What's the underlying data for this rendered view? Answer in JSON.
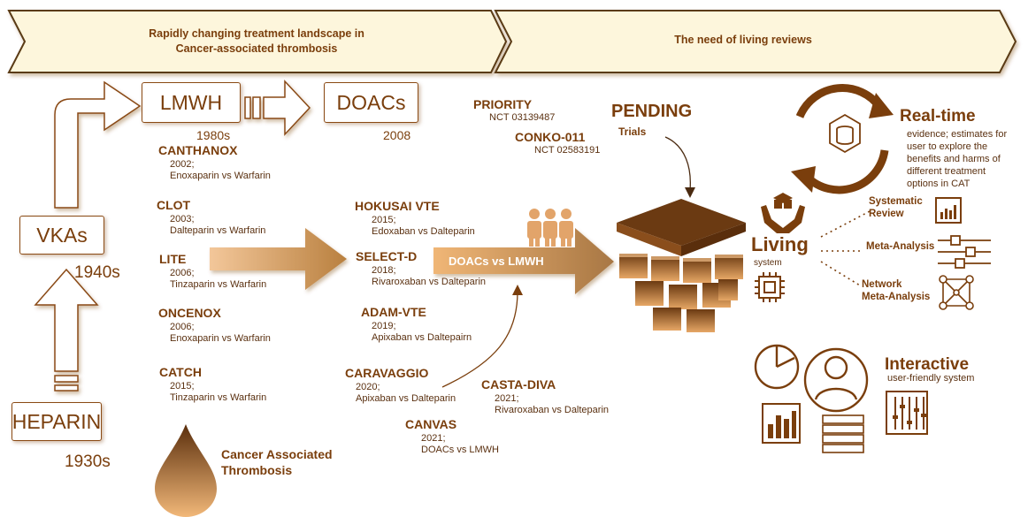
{
  "banner": {
    "left": [
      "Rapidly changing treatment landscape in",
      "Cancer-associated thrombosis"
    ],
    "right": "The need of living reviews"
  },
  "eras": {
    "heparin": "HEPARIN",
    "heparin_year": "1930s",
    "vka": "VKAs",
    "vka_year": "1940s",
    "lmwh": "LMWH",
    "lmwh_year": "1980s",
    "doac": "DOACs",
    "doac_year": "2008"
  },
  "lmwh_trials": [
    {
      "name": "CANTHANOX",
      "year": "2002;",
      "comparison": "Enoxaparin vs Warfarin"
    },
    {
      "name": "CLOT",
      "year": "2003;",
      "comparison": "Dalteparin vs Warfarin"
    },
    {
      "name": "LITE",
      "year": "2006;",
      "comparison": "Tinzaparin vs Warfarin"
    },
    {
      "name": "ONCENOX",
      "year": "2006;",
      "comparison": "Enoxaparin vs Warfarin"
    },
    {
      "name": "CATCH",
      "year": "2015;",
      "comparison": "Tinzaparin vs Warfarin"
    }
  ],
  "doac_trials": [
    {
      "name": "HOKUSAI VTE",
      "year": "2015;",
      "comparison": "Edoxaban vs Dalteparin"
    },
    {
      "name": "SELECT-D",
      "year": "2018;",
      "comparison": "Rivaroxaban vs Dalteparin"
    },
    {
      "name": "ADAM-VTE",
      "year": "2019;",
      "comparison": "Apixaban vs Daltepairn"
    },
    {
      "name": "CARAVAGGIO",
      "year": "2020;",
      "comparison": "Apixaban vs Dalteparin"
    },
    {
      "name": "CASTA-DIVA",
      "year": "2021;",
      "comparison": "Rivaroxaban vs Dalteparin"
    },
    {
      "name": "CANVAS",
      "year": "2021;",
      "comparison": "DOACs vs LMWH"
    }
  ],
  "pending": {
    "title": "PENDING",
    "subtitle": "Trials",
    "trials": [
      {
        "name": "PRIORITY",
        "nct": "NCT 03139487"
      },
      {
        "name": "CONKO-011",
        "nct": "NCT 02583191"
      }
    ]
  },
  "arrow_label": "DOACs vs LMWH",
  "drop_label": [
    "Cancer Associated",
    "Thrombosis"
  ],
  "living": {
    "title": "Living",
    "subtitle": "system",
    "branches": [
      [
        "Systematic",
        "Review"
      ],
      [
        "Meta-Analysis"
      ],
      [
        "Network",
        "Meta-Analysis"
      ]
    ]
  },
  "realtime": {
    "title": "Real-time",
    "desc": [
      "evidence; estimates for",
      "user to explore the",
      "benefits and harms of",
      "different treatment",
      "options in CAT"
    ]
  },
  "interactive": {
    "title": "Interactive",
    "subtitle": "user-friendly system"
  },
  "colors": {
    "brown": "#7a3e0c",
    "banner": "#fdf6dc",
    "orange": "#e4a060",
    "dark": "#6b3a12"
  }
}
